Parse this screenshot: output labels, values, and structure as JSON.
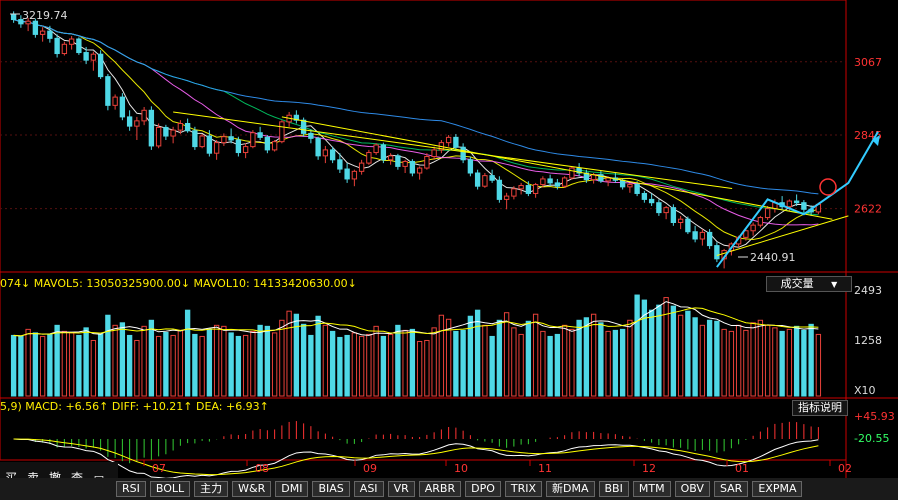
{
  "chart_data": {
    "type": "candlestick",
    "price_pane": {
      "y_axis_ticks": [
        3067,
        2845,
        2622
      ],
      "annotations": {
        "high_label": "3219.74",
        "low_label": "2440.91"
      },
      "ohlc": [
        [
          3210,
          3219.74,
          3185,
          3195
        ],
        [
          3195,
          3208,
          3170,
          3182
        ],
        [
          3182,
          3200,
          3160,
          3190
        ],
        [
          3190,
          3198,
          3140,
          3150
        ],
        [
          3150,
          3172,
          3128,
          3160
        ],
        [
          3160,
          3176,
          3125,
          3138
        ],
        [
          3138,
          3150,
          3080,
          3092
        ],
        [
          3092,
          3128,
          3086,
          3120
        ],
        [
          3120,
          3145,
          3104,
          3136
        ],
        [
          3136,
          3141,
          3088,
          3095
        ],
        [
          3095,
          3112,
          3060,
          3072
        ],
        [
          3072,
          3098,
          3040,
          3090
        ],
        [
          3090,
          3102,
          3015,
          3022
        ],
        [
          3022,
          3030,
          2920,
          2935
        ],
        [
          2935,
          2968,
          2922,
          2960
        ],
        [
          2960,
          2972,
          2890,
          2900
        ],
        [
          2900,
          2920,
          2858,
          2872
        ],
        [
          2872,
          2900,
          2830,
          2888
        ],
        [
          2888,
          2930,
          2875,
          2920
        ],
        [
          2920,
          2932,
          2800,
          2812
        ],
        [
          2812,
          2880,
          2805,
          2868
        ],
        [
          2868,
          2876,
          2830,
          2842
        ],
        [
          2842,
          2870,
          2820,
          2860
        ],
        [
          2860,
          2890,
          2848,
          2880
        ],
        [
          2880,
          2895,
          2852,
          2858
        ],
        [
          2858,
          2870,
          2800,
          2810
        ],
        [
          2810,
          2848,
          2805,
          2842
        ],
        [
          2842,
          2860,
          2780,
          2790
        ],
        [
          2790,
          2830,
          2770,
          2822
        ],
        [
          2822,
          2850,
          2812,
          2840
        ],
        [
          2840,
          2865,
          2820,
          2830
        ],
        [
          2830,
          2840,
          2780,
          2792
        ],
        [
          2792,
          2820,
          2775,
          2810
        ],
        [
          2810,
          2860,
          2805,
          2852
        ],
        [
          2852,
          2870,
          2830,
          2838
        ],
        [
          2838,
          2845,
          2790,
          2800
        ],
        [
          2800,
          2830,
          2795,
          2825
        ],
        [
          2825,
          2890,
          2820,
          2885
        ],
        [
          2885,
          2915,
          2870,
          2905
        ],
        [
          2905,
          2920,
          2880,
          2890
        ],
        [
          2890,
          2898,
          2840,
          2850
        ],
        [
          2850,
          2862,
          2820,
          2835
        ],
        [
          2835,
          2840,
          2770,
          2782
        ],
        [
          2782,
          2812,
          2760,
          2800
        ],
        [
          2800,
          2810,
          2760,
          2770
        ],
        [
          2770,
          2790,
          2730,
          2742
        ],
        [
          2742,
          2760,
          2700,
          2712
        ],
        [
          2712,
          2740,
          2690,
          2735
        ],
        [
          2735,
          2770,
          2725,
          2760
        ],
        [
          2760,
          2800,
          2755,
          2792
        ],
        [
          2792,
          2820,
          2785,
          2815
        ],
        [
          2815,
          2822,
          2760,
          2770
        ],
        [
          2770,
          2790,
          2755,
          2782
        ],
        [
          2782,
          2788,
          2740,
          2750
        ],
        [
          2750,
          2770,
          2730,
          2765
        ],
        [
          2765,
          2772,
          2720,
          2730
        ],
        [
          2730,
          2750,
          2710,
          2745
        ],
        [
          2745,
          2790,
          2740,
          2780
        ],
        [
          2780,
          2810,
          2770,
          2800
        ],
        [
          2800,
          2830,
          2790,
          2822
        ],
        [
          2822,
          2845,
          2810,
          2838
        ],
        [
          2838,
          2848,
          2800,
          2808
        ],
        [
          2808,
          2820,
          2760,
          2770
        ],
        [
          2770,
          2780,
          2720,
          2730
        ],
        [
          2730,
          2740,
          2680,
          2690
        ],
        [
          2690,
          2730,
          2685,
          2722
        ],
        [
          2722,
          2740,
          2700,
          2708
        ],
        [
          2708,
          2720,
          2640,
          2650
        ],
        [
          2650,
          2670,
          2620,
          2660
        ],
        [
          2660,
          2690,
          2650,
          2682
        ],
        [
          2682,
          2700,
          2665,
          2692
        ],
        [
          2692,
          2705,
          2660,
          2668
        ],
        [
          2668,
          2700,
          2655,
          2695
        ],
        [
          2695,
          2720,
          2686,
          2712
        ],
        [
          2712,
          2725,
          2690,
          2700
        ],
        [
          2700,
          2712,
          2680,
          2690
        ],
        [
          2690,
          2720,
          2685,
          2715
        ],
        [
          2715,
          2750,
          2710,
          2745
        ],
        [
          2745,
          2760,
          2720,
          2730
        ],
        [
          2730,
          2740,
          2700,
          2710
        ],
        [
          2710,
          2730,
          2698,
          2725
        ],
        [
          2725,
          2738,
          2700,
          2706
        ],
        [
          2706,
          2720,
          2690,
          2715
        ],
        [
          2715,
          2730,
          2700,
          2708
        ],
        [
          2708,
          2712,
          2680,
          2688
        ],
        [
          2688,
          2700,
          2670,
          2695
        ],
        [
          2695,
          2705,
          2660,
          2668
        ],
        [
          2668,
          2676,
          2640,
          2650
        ],
        [
          2650,
          2668,
          2630,
          2640
        ],
        [
          2640,
          2650,
          2600,
          2610
        ],
        [
          2610,
          2630,
          2590,
          2625
        ],
        [
          2625,
          2635,
          2570,
          2580
        ],
        [
          2580,
          2600,
          2560,
          2590
        ],
        [
          2590,
          2598,
          2545,
          2552
        ],
        [
          2552,
          2570,
          2520,
          2530
        ],
        [
          2530,
          2560,
          2510,
          2550
        ],
        [
          2550,
          2560,
          2500,
          2510
        ],
        [
          2510,
          2520,
          2460,
          2470
        ],
        [
          2470,
          2500,
          2440.91,
          2495
        ],
        [
          2495,
          2520,
          2480,
          2515
        ],
        [
          2515,
          2540,
          2505,
          2535
        ],
        [
          2535,
          2560,
          2525,
          2555
        ],
        [
          2555,
          2580,
          2540,
          2572
        ],
        [
          2572,
          2600,
          2565,
          2595
        ],
        [
          2595,
          2630,
          2588,
          2622
        ],
        [
          2622,
          2650,
          2610,
          2640
        ],
        [
          2640,
          2660,
          2620,
          2628
        ],
        [
          2628,
          2650,
          2615,
          2645
        ],
        [
          2645,
          2665,
          2630,
          2640
        ],
        [
          2640,
          2648,
          2610,
          2620
        ],
        [
          2620,
          2632,
          2600,
          2612
        ],
        [
          2612,
          2640,
          2605,
          2635
        ]
      ]
    },
    "volume_pane": {
      "header_values": "074↓ MAVOL5: 13050325900.00↓ MAVOL10: 14133420630.00↓",
      "y_axis_ticks": [
        "2493",
        "1258",
        "X10"
      ],
      "label": "成交量",
      "values": [
        120,
        118,
        132,
        125,
        118,
        122,
        140,
        128,
        125,
        120,
        135,
        110,
        122,
        160,
        140,
        145,
        120,
        110,
        138,
        150,
        118,
        126,
        120,
        130,
        170,
        122,
        118,
        132,
        140,
        138,
        125,
        118,
        120,
        128,
        140,
        138,
        125,
        150,
        168,
        162,
        142,
        120,
        158,
        140,
        128,
        116,
        120,
        125,
        118,
        122,
        138,
        118,
        122,
        140,
        130,
        132,
        108,
        110,
        135,
        160,
        152,
        128,
        130,
        158,
        170,
        140,
        118,
        150,
        165,
        135,
        122,
        148,
        162,
        128,
        118,
        122,
        140,
        132,
        150,
        155,
        162,
        145,
        128,
        130,
        132,
        150,
        200,
        190,
        170,
        180,
        195,
        178,
        160,
        168,
        155,
        140,
        150,
        148,
        132,
        128,
        140,
        130,
        145,
        150,
        140,
        135,
        128,
        132,
        138,
        130,
        142,
        122
      ]
    },
    "macd_pane": {
      "header_values": "5,9) MACD: +6.56↑ DIFF: +10.21↑ DEA: +6.93↑",
      "y_axis_ticks": [
        "+45.93",
        "-20.55"
      ],
      "button": "指标说明"
    },
    "x_axis_ticks": [
      "07",
      "08",
      "09",
      "10",
      "11",
      "12",
      "01",
      "02"
    ]
  },
  "toolbar": {
    "buy": "买",
    "sell": "卖",
    "cancel": "撤",
    "query": "查",
    "window_icon": "window-icon"
  },
  "indicator_tabs": [
    "RSI",
    "BOLL",
    "主力",
    "W&R",
    "DMI",
    "BIAS",
    "ASI",
    "VR",
    "ARBR",
    "DPO",
    "TRIX",
    "新DMA",
    "BBI",
    "MTM",
    "OBV",
    "SAR",
    "EXPMA"
  ],
  "colors": {
    "up": "#e8413a",
    "down": "#4fd8e6",
    "ma5": "#ffffff",
    "ma10": "#ffff00",
    "ma20": "#ff66ff",
    "ma30": "#00cc66",
    "ma60": "#3399ff",
    "trend": "#ffff00",
    "arrow": "#33ccff",
    "axis_red": "#cc0000"
  }
}
